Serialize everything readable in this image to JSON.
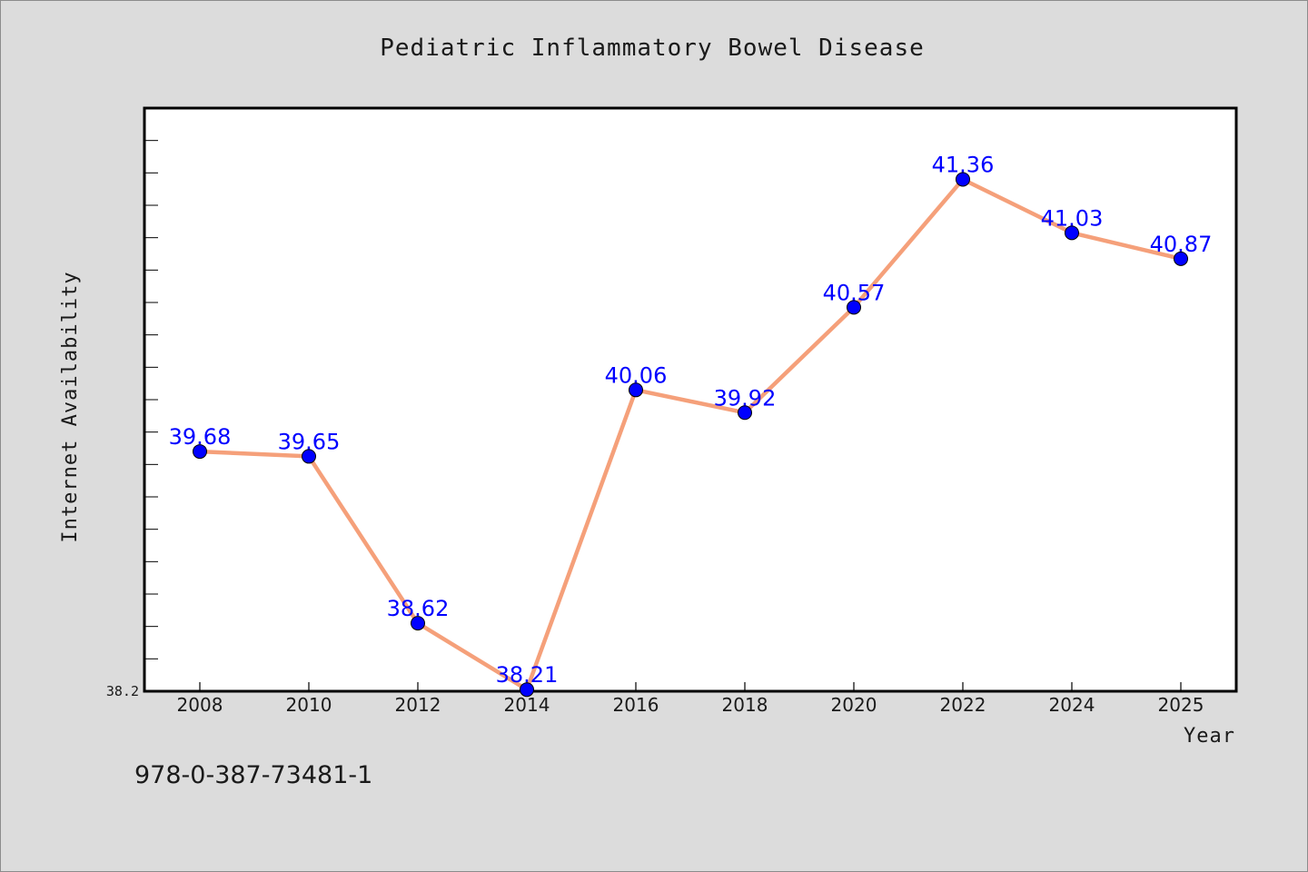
{
  "colors": {
    "background": "#dcdcdc",
    "plot_background": "#ffffff",
    "line": "#f5a07a",
    "marker": "#0000ff",
    "data_label": "#0000ff",
    "text": "#1a1a1a"
  },
  "footer_text": "978-0-387-73481-1",
  "chart_data": {
    "type": "line",
    "title": "Pediatric Inflammatory Bowel Disease",
    "xlabel": "Year",
    "ylabel": "Internet Availability",
    "categories": [
      "2008",
      "2010",
      "2012",
      "2014",
      "2016",
      "2018",
      "2020",
      "2022",
      "2024",
      "2025"
    ],
    "series": [
      {
        "values": [
          39.68,
          39.65,
          38.62,
          38.21,
          40.06,
          39.92,
          40.57,
          41.36,
          41.03,
          40.87
        ],
        "labels": [
          "39.68",
          "39.65",
          "38.62",
          "38.21",
          "40.06",
          "39.92",
          "40.57",
          "41.36",
          "41.03",
          "40.87"
        ]
      }
    ],
    "ylim": [
      38.2,
      41.8
    ],
    "ymin_label": "38.2",
    "grid": false,
    "legend": "none"
  }
}
